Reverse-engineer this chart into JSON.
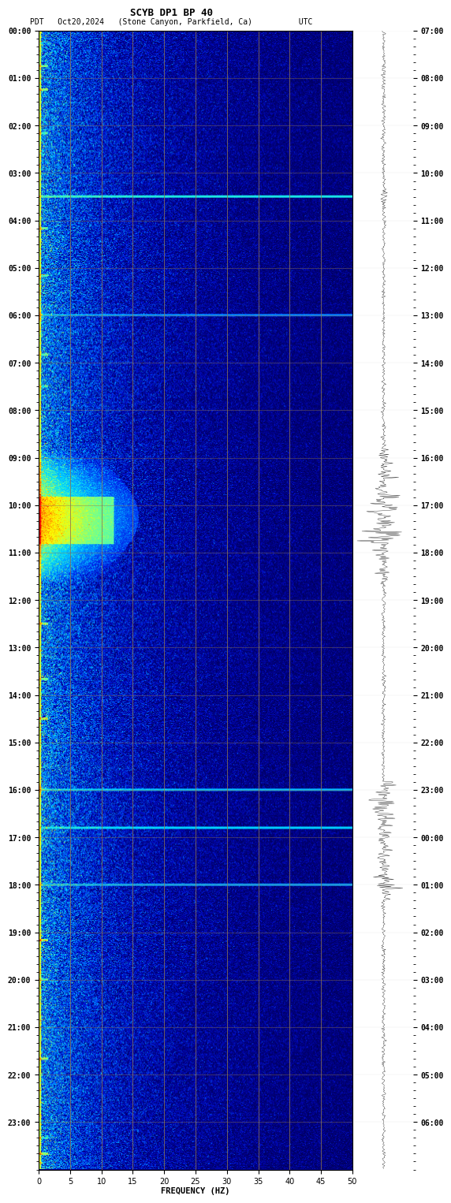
{
  "title_line1": "SCYB DP1 BP 40",
  "title_line2": "PDT   Oct20,2024   (Stone Canyon, Parkfield, Ca)          UTC",
  "xlabel": "FREQUENCY (HZ)",
  "left_times": [
    "00:00",
    "01:00",
    "02:00",
    "03:00",
    "04:00",
    "05:00",
    "06:00",
    "07:00",
    "08:00",
    "09:00",
    "10:00",
    "11:00",
    "12:00",
    "13:00",
    "14:00",
    "15:00",
    "16:00",
    "17:00",
    "18:00",
    "19:00",
    "20:00",
    "21:00",
    "22:00",
    "23:00"
  ],
  "right_times": [
    "07:00",
    "08:00",
    "09:00",
    "10:00",
    "11:00",
    "12:00",
    "13:00",
    "14:00",
    "15:00",
    "16:00",
    "17:00",
    "18:00",
    "19:00",
    "20:00",
    "21:00",
    "22:00",
    "23:00",
    "00:00",
    "01:00",
    "02:00",
    "03:00",
    "04:00",
    "05:00",
    "06:00"
  ],
  "freq_ticks": [
    0,
    5,
    10,
    15,
    20,
    25,
    30,
    35,
    40,
    45,
    50
  ],
  "grid_color": "#8B7355",
  "font_family": "monospace",
  "font_size_title": 9,
  "font_size_label": 7.5,
  "font_size_tick": 7
}
